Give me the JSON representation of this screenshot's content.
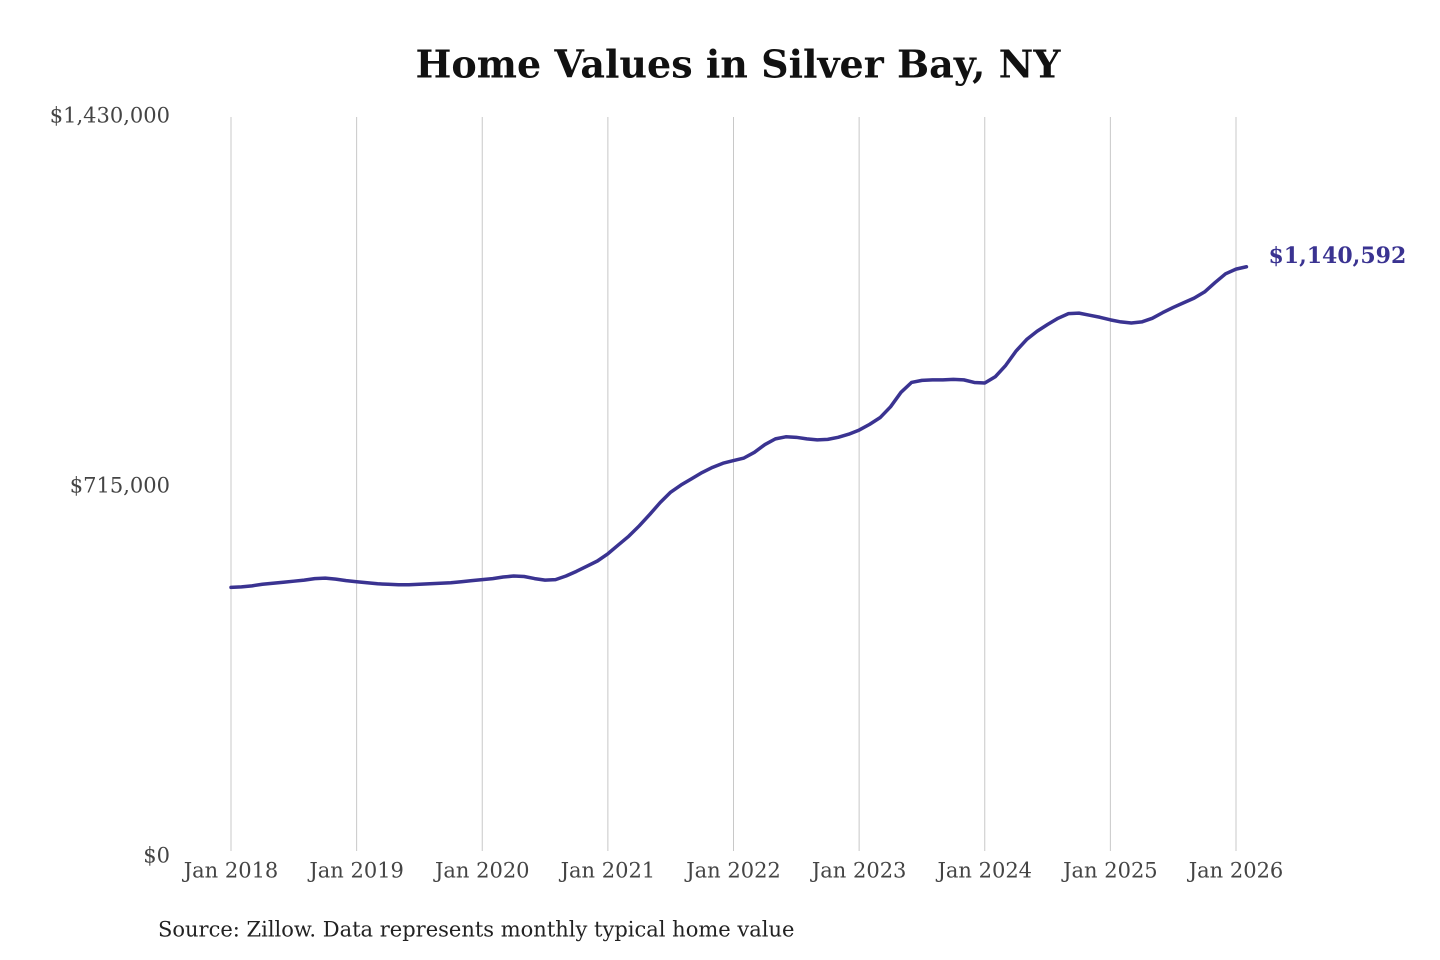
{
  "chart_data": {
    "type": "line",
    "title": "Home Values in Silver Bay, NY",
    "source": "Source: Zillow. Data represents monthly typical home value",
    "categories": [
      "Jan 2018",
      null,
      null,
      null,
      null,
      null,
      null,
      null,
      null,
      null,
      null,
      null,
      "Jan 2019",
      null,
      null,
      null,
      null,
      null,
      null,
      null,
      null,
      null,
      null,
      null,
      "Jan 2020",
      null,
      null,
      null,
      null,
      null,
      null,
      null,
      null,
      null,
      null,
      null,
      "Jan 2021",
      null,
      null,
      null,
      null,
      null,
      null,
      null,
      null,
      null,
      null,
      null,
      "Jan 2022",
      null,
      null,
      null,
      null,
      null,
      null,
      null,
      null,
      null,
      null,
      null,
      "Jan 2023",
      null,
      null,
      null,
      null,
      null,
      null,
      null,
      null,
      null,
      null,
      null,
      "Jan 2024",
      null,
      null,
      null,
      null,
      null,
      null,
      null,
      null,
      null,
      null,
      null,
      "Jan 2025",
      null,
      null,
      null,
      null,
      null,
      null,
      null,
      null,
      null,
      null,
      null,
      "Jan 2026",
      null
    ],
    "series": [
      {
        "name": "Silver Bay, NY",
        "color": "#3a3391",
        "values": [
          521000,
          522000,
          524000,
          527000,
          529000,
          531000,
          533000,
          535000,
          538000,
          539000,
          537000,
          534000,
          532000,
          530000,
          528000,
          527000,
          526000,
          526000,
          527000,
          528000,
          529000,
          530000,
          532000,
          534000,
          536000,
          538000,
          541000,
          543000,
          542000,
          538000,
          535000,
          536000,
          543000,
          552000,
          562000,
          572000,
          586000,
          603000,
          620000,
          640000,
          662000,
          685000,
          705000,
          719000,
          731000,
          743000,
          753000,
          761000,
          766000,
          771000,
          782000,
          797000,
          808000,
          812000,
          811000,
          808000,
          806000,
          807000,
          811000,
          817000,
          825000,
          836000,
          849000,
          870000,
          898000,
          917000,
          921000,
          922000,
          922000,
          923000,
          922000,
          917000,
          916000,
          928000,
          950000,
          978000,
          1000000,
          1016000,
          1029000,
          1041000,
          1050000,
          1051000,
          1047000,
          1043000,
          1038000,
          1034000,
          1032000,
          1034000,
          1041000,
          1052000,
          1062000,
          1071000,
          1080000,
          1092000,
          1110000,
          1127000,
          1136000,
          1140592
        ],
        "value_labels": [
          null,
          null,
          null,
          null,
          null,
          null,
          null,
          null,
          null,
          null,
          null,
          null,
          null,
          null,
          null,
          null,
          null,
          null,
          null,
          null,
          null,
          null,
          null,
          null,
          null,
          null,
          null,
          null,
          null,
          null,
          null,
          null,
          null,
          null,
          null,
          null,
          null,
          null,
          null,
          null,
          null,
          null,
          null,
          null,
          null,
          null,
          null,
          null,
          null,
          null,
          null,
          null,
          null,
          null,
          null,
          null,
          null,
          null,
          null,
          null,
          null,
          null,
          null,
          null,
          null,
          null,
          null,
          null,
          null,
          null,
          null,
          null,
          null,
          null,
          null,
          null,
          null,
          null,
          null,
          null,
          null,
          null,
          null,
          null,
          null,
          null,
          null,
          null,
          null,
          null,
          null,
          null,
          null,
          null,
          null,
          null,
          null,
          "$1,140,592"
        ]
      }
    ],
    "ylim": [
      0,
      1430000
    ],
    "yticks": [
      {
        "value": 0,
        "label": "$0"
      },
      {
        "value": 715000,
        "label": "$715,000"
      },
      {
        "value": 1430000,
        "label": "$1,430,000"
      }
    ],
    "grid": "x"
  }
}
